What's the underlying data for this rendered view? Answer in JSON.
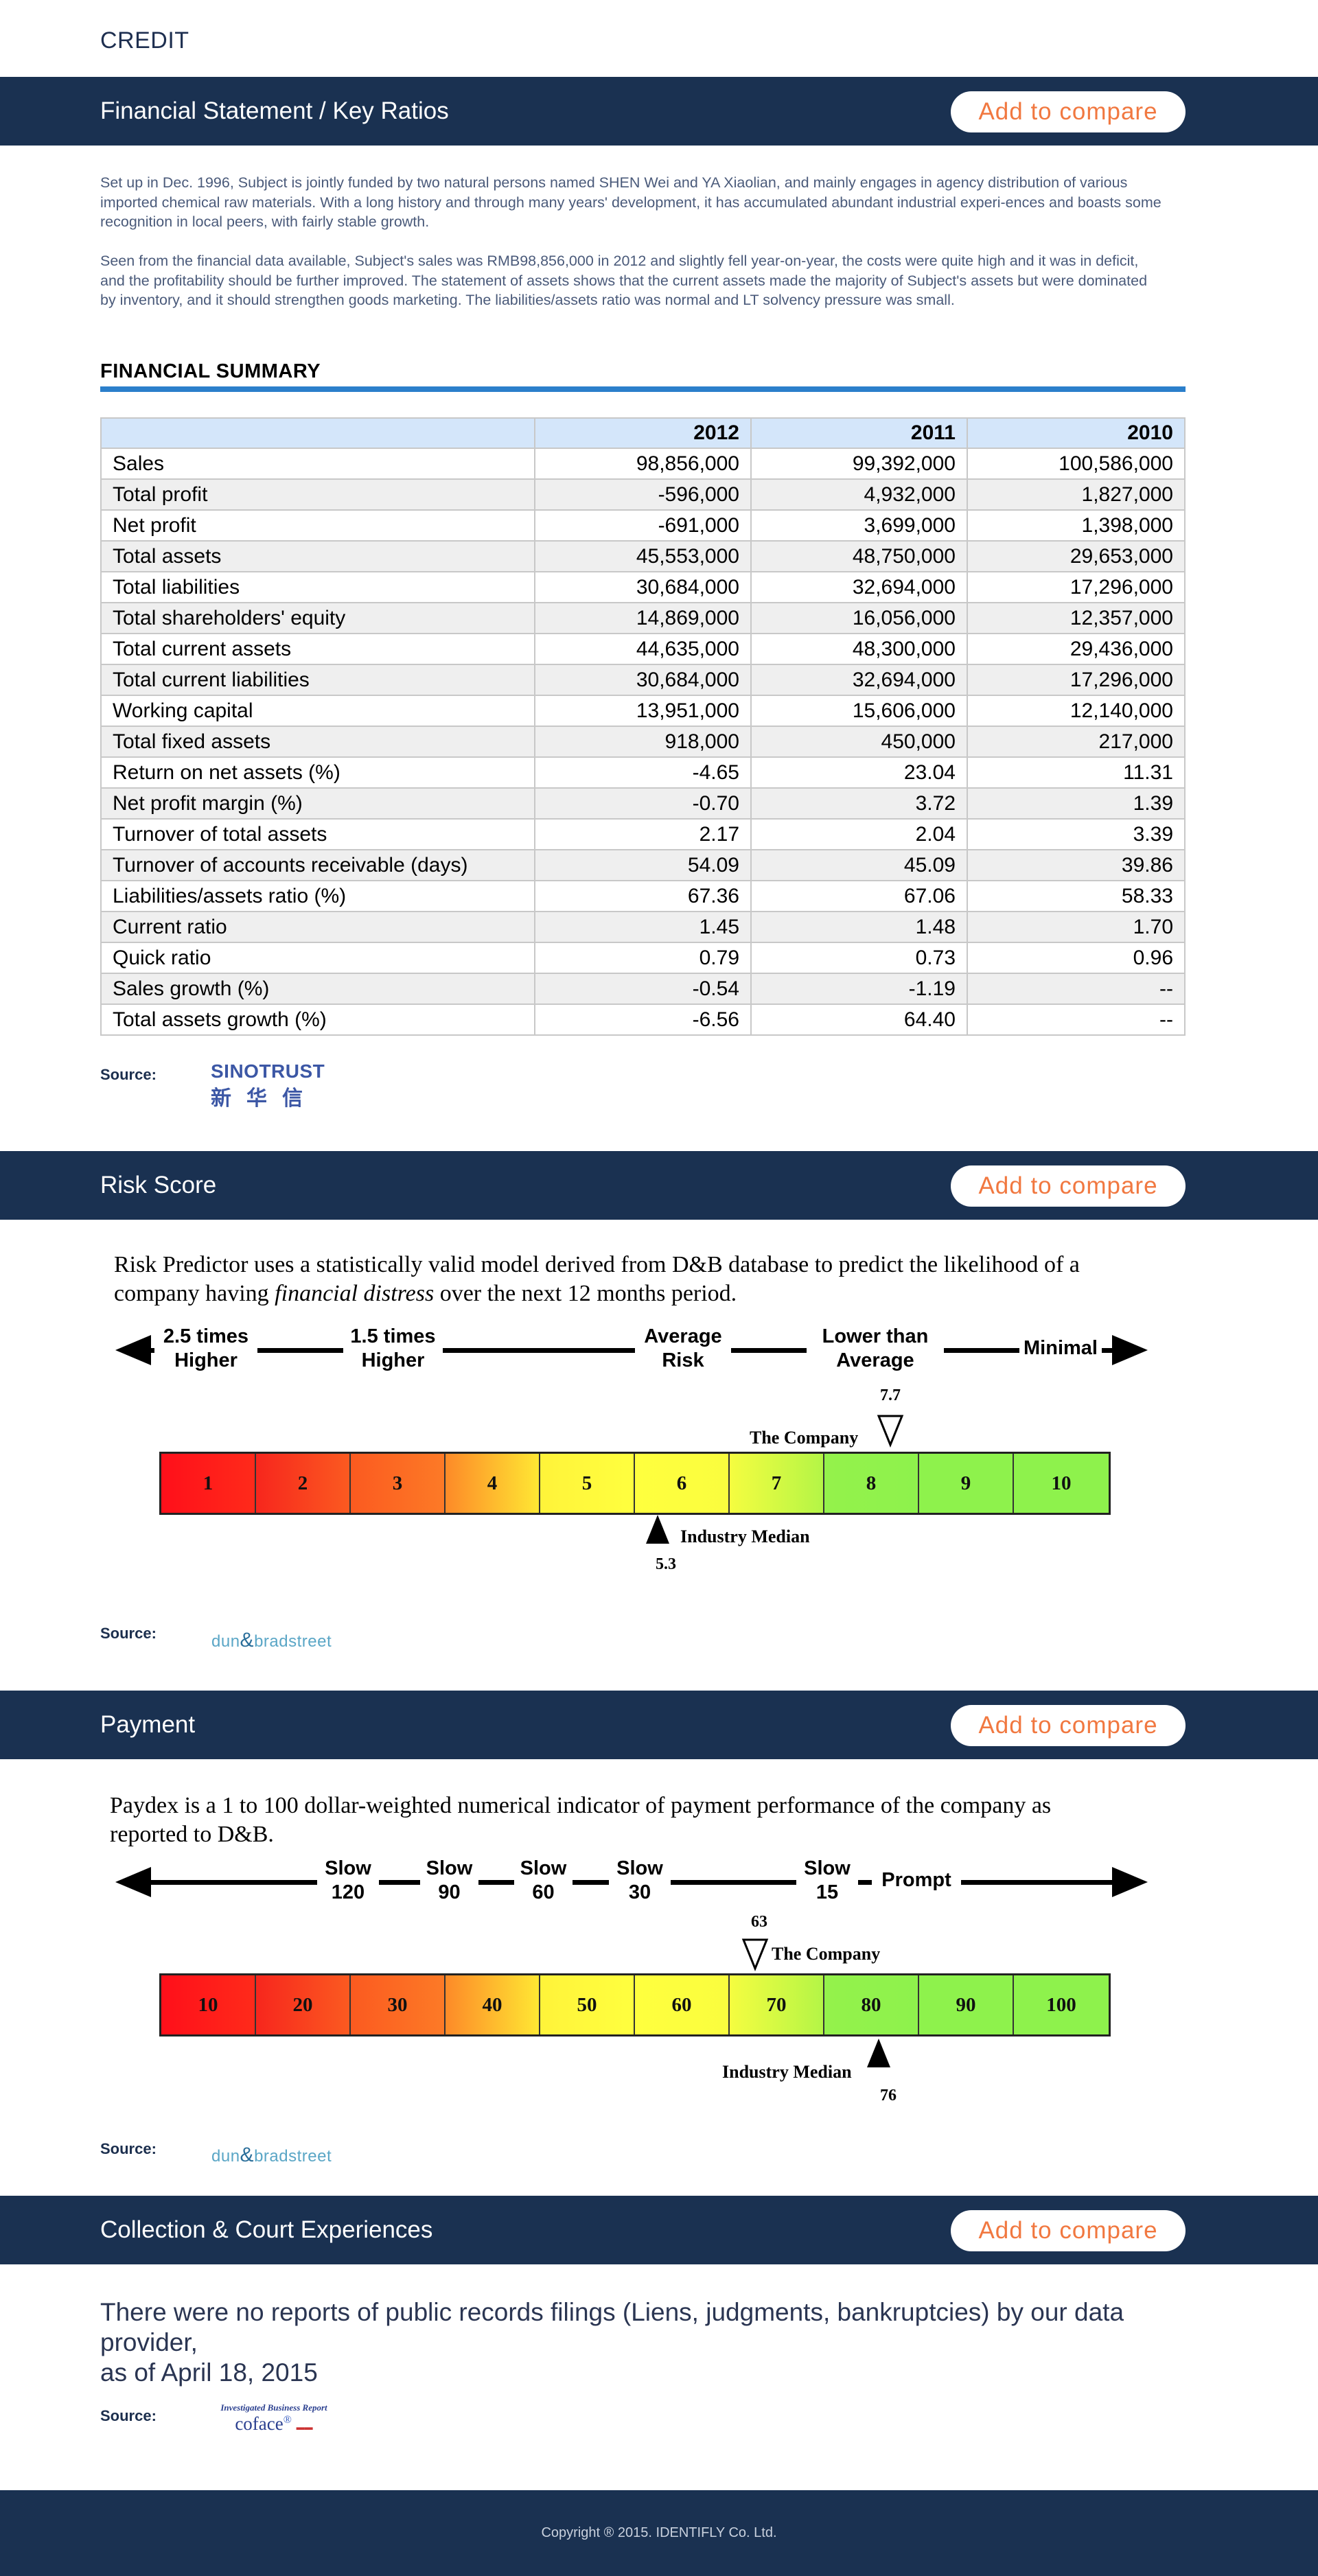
{
  "top_label": "CREDIT",
  "sections": {
    "financial": {
      "title": "Financial Statement / Key Ratios",
      "compare_label": "Add to compare",
      "paragraphs": [
        "Set up in Dec. 1996, Subject is jointly funded by two natural persons named SHEN Wei and YA Xiaolian, and mainly engages in agency distribution of various imported chemical raw materials. With a long history and through many years' development, it has accumulated abundant industrial experi-ences and boasts some recognition in local peers, with fairly stable growth.",
        "Seen from the financial data available, Subject's sales was RMB98,856,000 in 2012 and slightly fell year-on-year, the costs were quite high and it was in deficit, and the profitability should be further improved. The statement of assets shows that the current assets made the majority of Subject's assets but were dominated by inventory, and it should strengthen goods marketing. The liabilities/assets ratio was normal and LT solvency pressure was small."
      ],
      "summary_heading": "FINANCIAL SUMMARY",
      "table": {
        "headers": [
          "",
          "2012",
          "2011",
          "2010"
        ],
        "rows": [
          [
            "Sales",
            "98,856,000",
            "99,392,000",
            "100,586,000"
          ],
          [
            "Total profit",
            "-596,000",
            "4,932,000",
            "1,827,000"
          ],
          [
            "Net profit",
            "-691,000",
            "3,699,000",
            "1,398,000"
          ],
          [
            "Total assets",
            "45,553,000",
            "48,750,000",
            "29,653,000"
          ],
          [
            "Total liabilities",
            "30,684,000",
            "32,694,000",
            "17,296,000"
          ],
          [
            "Total shareholders' equity",
            "14,869,000",
            "16,056,000",
            "12,357,000"
          ],
          [
            "Total current assets",
            "44,635,000",
            "48,300,000",
            "29,436,000"
          ],
          [
            "Total current liabilities",
            "30,684,000",
            "32,694,000",
            "17,296,000"
          ],
          [
            "Working capital",
            "13,951,000",
            "15,606,000",
            "12,140,000"
          ],
          [
            "Total fixed assets",
            "918,000",
            "450,000",
            "217,000"
          ],
          [
            "Return on net assets (%)",
            "-4.65",
            "23.04",
            "11.31"
          ],
          [
            "Net profit margin (%)",
            "-0.70",
            "3.72",
            "1.39"
          ],
          [
            "Turnover of total assets",
            "2.17",
            "2.04",
            "3.39"
          ],
          [
            "Turnover of accounts receivable (days)",
            "54.09",
            "45.09",
            "39.86"
          ],
          [
            "Liabilities/assets ratio (%)",
            "67.36",
            "67.06",
            "58.33"
          ],
          [
            "Current ratio",
            "1.45",
            "1.48",
            "1.70"
          ],
          [
            "Quick ratio",
            "0.79",
            "0.73",
            "0.96"
          ],
          [
            "Sales growth (%)",
            "-0.54",
            "-1.19",
            "--"
          ],
          [
            "Total assets growth (%)",
            "-6.56",
            "64.40",
            "--"
          ]
        ]
      },
      "source_label": "Source:",
      "source_logo_en": "SINOTRUST",
      "source_logo_zh": "新华信"
    },
    "risk": {
      "title": "Risk Score",
      "compare_label": "Add to compare",
      "intro_1": "Risk Predictor uses a statistically valid model derived from D&B database to predict the likelihood of a",
      "intro_2a": "company having ",
      "intro_2b": "financial distress",
      "intro_2c": " over the next 12 months period.",
      "arrow_labels": [
        [
          "2.5 times",
          "Higher"
        ],
        [
          "1.5 times",
          "Higher"
        ],
        [
          "Average",
          "Risk"
        ],
        [
          "Lower than",
          "Average"
        ],
        [
          "Minimal",
          ""
        ]
      ],
      "scale": [
        "1",
        "2",
        "3",
        "4",
        "5",
        "6",
        "7",
        "8",
        "9",
        "10"
      ],
      "company_label": "The Company",
      "company_value": "7.7",
      "median_label": "Industry Median",
      "median_value": "5.3",
      "source_label": "Source:",
      "source_logo": "dun&bradstreet"
    },
    "payment": {
      "title": "Payment",
      "compare_label": "Add to compare",
      "intro_1": "Paydex is a 1 to 100 dollar-weighted numerical indicator of payment performance of the company as",
      "intro_2": "reported to D&B.",
      "arrow_labels": [
        [
          "Slow",
          "120"
        ],
        [
          "Slow",
          "90"
        ],
        [
          "Slow",
          "60"
        ],
        [
          "Slow",
          "30"
        ],
        [
          "Slow",
          "15"
        ],
        [
          "Prompt",
          ""
        ]
      ],
      "scale": [
        "10",
        "20",
        "30",
        "40",
        "50",
        "60",
        "70",
        "80",
        "90",
        "100"
      ],
      "company_label": "The Company",
      "company_value": "63",
      "median_label": "Industry Median",
      "median_value": "76",
      "source_label": "Source:",
      "source_logo": "dun&bradstreet"
    },
    "collection": {
      "title": "Collection & Court Experiences",
      "compare_label": "Add to compare",
      "text_1": "There were no reports of public records filings (Liens, judgments, bankruptcies) by our data provider,",
      "text_2": "as of April 18, 2015",
      "source_label": "Source:",
      "source_logo_top": "Investigated Business Report",
      "source_logo_main": "coface"
    }
  },
  "footer": "Copyright ® 2015. IDENTIFLY Co. Ltd.",
  "colors": {
    "navy": "#1a3151",
    "accent_orange": "#f17840",
    "rule_blue": "#2b7fcb",
    "table_header": "#d4e6fa"
  }
}
